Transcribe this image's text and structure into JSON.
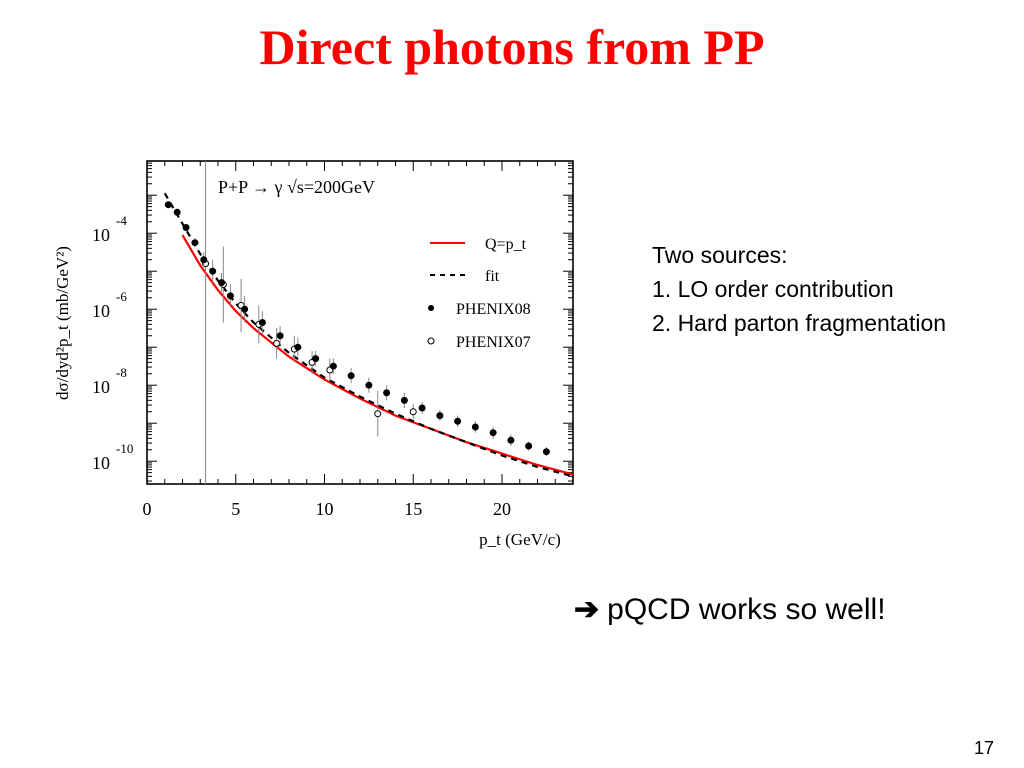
{
  "slide": {
    "title": "Direct photons from PP",
    "notes": {
      "heading": "Two sources:",
      "items": [
        "1.  LO order  contribution",
        "2. Hard parton fragmentation"
      ]
    },
    "conclusion": {
      "arrow": "➔",
      "text": "pQCD works so well!"
    },
    "page_number": "17"
  },
  "chart_data": {
    "type": "scatter",
    "annotation": "P+P → γ  √s=200GeV",
    "xlabel": "p_t (GeV/c)",
    "ylabel": "dσ/dyd²p_t (mb/GeV²)",
    "xlim": [
      0,
      24
    ],
    "ylim_log10": [
      -10.6,
      -2.1
    ],
    "yscale": "log",
    "x_ticks": [
      "0",
      "5",
      "10",
      "15",
      "20"
    ],
    "y_ticks": [
      {
        "exp": -4,
        "label": "10",
        "sup": "-4"
      },
      {
        "exp": -6,
        "label": "10",
        "sup": "-6"
      },
      {
        "exp": -8,
        "label": "10",
        "sup": "-8"
      },
      {
        "exp": -10,
        "label": "10",
        "sup": "-10"
      }
    ],
    "legend_position": "top-right",
    "legend": [
      {
        "label": "Q=p_t",
        "style": "red-solid"
      },
      {
        "label": "fit",
        "style": "black-dashed"
      },
      {
        "label": "PHENIX08",
        "style": "filled-circle"
      },
      {
        "label": "PHENIX07",
        "style": "open-circle"
      }
    ],
    "colors": {
      "theory": "#ff0000",
      "fit": "#000000",
      "data": "#000000"
    },
    "series": [
      {
        "name": "Q=p_t",
        "x": [
          2.0,
          3.0,
          4.0,
          5.0,
          6.0,
          8.0,
          10.0,
          12.0,
          14.0,
          16.0,
          18.0,
          20.0,
          22.0,
          24.0
        ],
        "log10y": [
          -4.05,
          -4.85,
          -5.5,
          -6.05,
          -6.5,
          -7.25,
          -7.85,
          -8.35,
          -8.8,
          -9.15,
          -9.5,
          -9.8,
          -10.1,
          -10.35
        ]
      },
      {
        "name": "fit",
        "x": [
          1.0,
          1.5,
          2.0,
          3.0,
          4.0,
          5.0,
          6.0,
          8.0,
          10.0,
          12.0,
          14.0,
          16.0,
          18.0,
          20.0,
          22.0,
          24.0
        ],
        "log10y": [
          -2.95,
          -3.35,
          -3.75,
          -4.55,
          -5.25,
          -5.85,
          -6.35,
          -7.15,
          -7.8,
          -8.3,
          -8.75,
          -9.15,
          -9.5,
          -9.85,
          -10.15,
          -10.4
        ]
      },
      {
        "name": "PHENIX08",
        "x": [
          1.2,
          1.7,
          2.2,
          2.7,
          3.2,
          3.7,
          4.2,
          4.7,
          5.5,
          6.5,
          7.5,
          8.5,
          9.5,
          10.5,
          11.5,
          12.5,
          13.5,
          14.5,
          15.5,
          16.5,
          17.5,
          18.5,
          19.5,
          20.5,
          21.5,
          22.5
        ],
        "log10y": [
          -3.25,
          -3.45,
          -3.85,
          -4.25,
          -4.7,
          -5.0,
          -5.3,
          -5.65,
          -6.0,
          -6.35,
          -6.7,
          -7.0,
          -7.3,
          -7.5,
          -7.75,
          -8.0,
          -8.2,
          -8.4,
          -8.6,
          -8.8,
          -8.95,
          -9.1,
          -9.25,
          -9.45,
          -9.6,
          -9.75
        ],
        "err_log10": [
          0.05,
          0.05,
          0.08,
          0.12,
          0.2,
          0.3,
          0.25,
          0.3,
          0.35,
          0.3,
          0.25,
          0.25,
          0.2,
          0.2,
          0.2,
          0.2,
          0.2,
          0.2,
          0.15,
          0.15,
          0.15,
          0.15,
          0.15,
          0.15,
          0.12,
          0.12
        ]
      },
      {
        "name": "PHENIX07",
        "x": [
          3.3,
          4.3,
          5.3,
          6.3,
          7.3,
          8.3,
          9.3,
          10.3,
          13.0,
          15.0
        ],
        "log10y": [
          -4.8,
          -5.35,
          -5.9,
          -6.4,
          -6.9,
          -7.05,
          -7.4,
          -7.6,
          -8.75,
          -8.7
        ],
        "err_log10": [
          6.0,
          1.0,
          0.7,
          0.5,
          0.4,
          0.35,
          0.3,
          0.3,
          0.6,
          0.2
        ]
      }
    ]
  }
}
